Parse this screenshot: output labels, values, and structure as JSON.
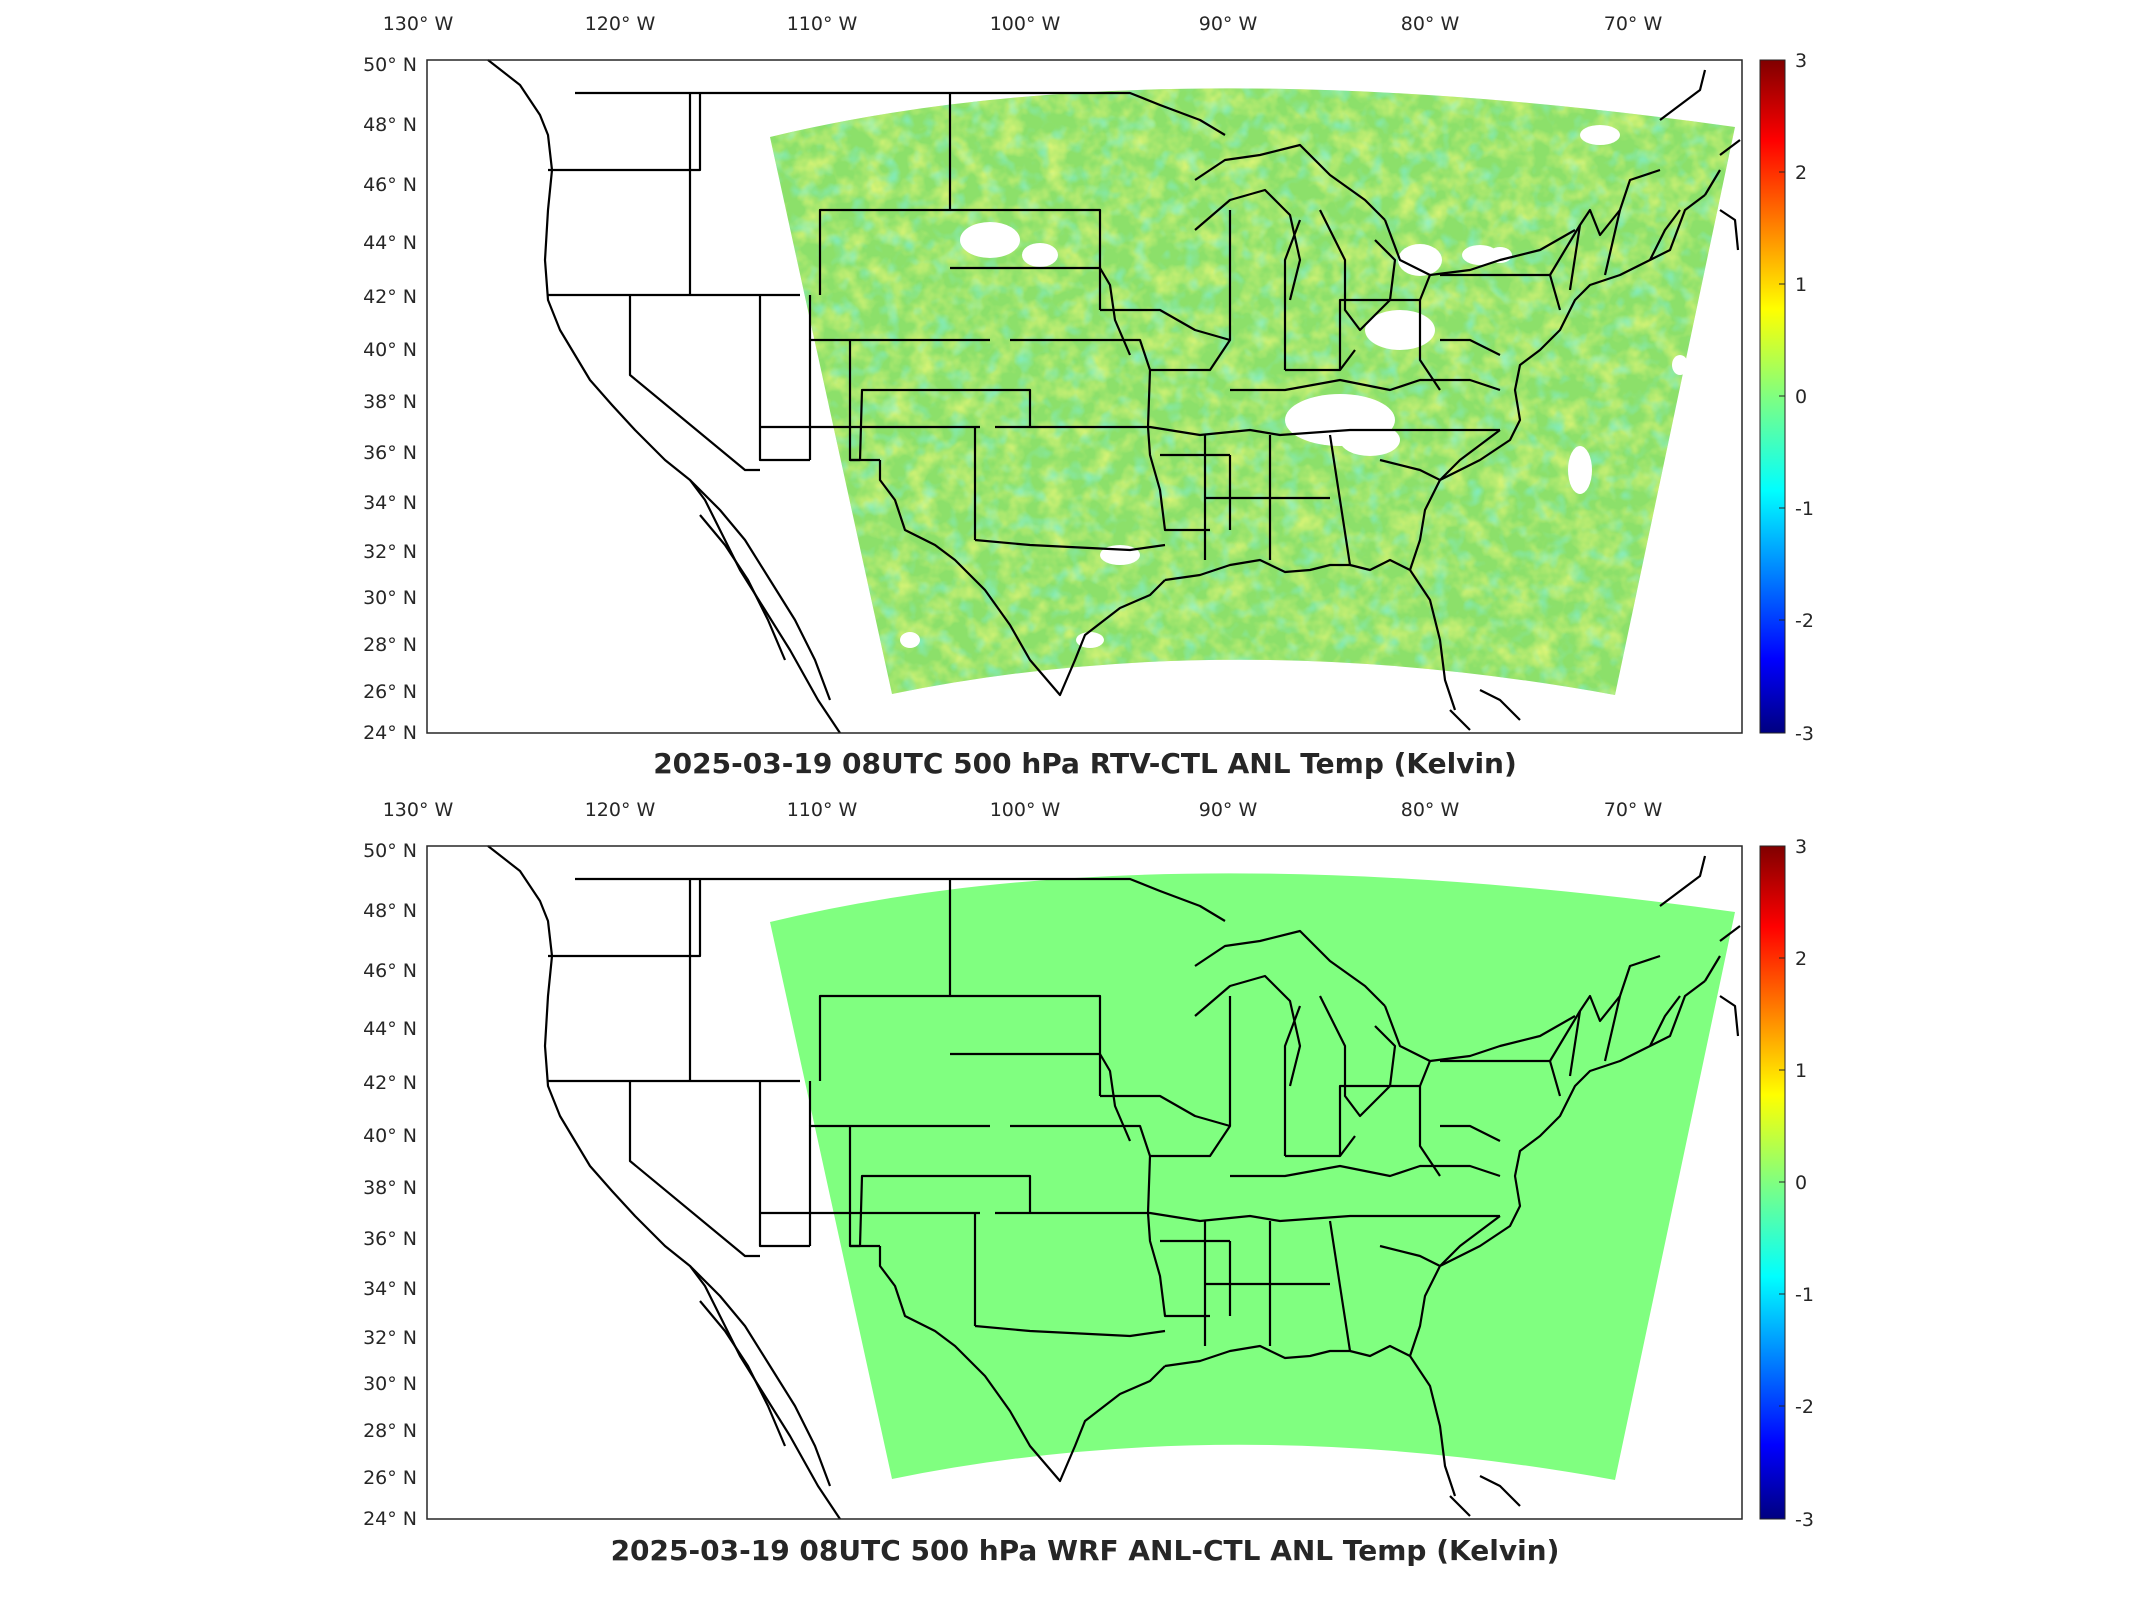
{
  "panels": [
    {
      "title": "2025-03-19 08UTC 500 hPa RTV-CTL ANL Temp (Kelvin)",
      "field": "noisy",
      "base_color": "#8ce06a"
    },
    {
      "title": "2025-03-19 08UTC 500 hPa WRF ANL-CTL ANL Temp (Kelvin)",
      "field": "uniform",
      "base_color": "#80ff80"
    }
  ],
  "axes": {
    "lon_ticks": [
      "130° W",
      "120° W",
      "110° W",
      "100° W",
      "90° W",
      "80° W",
      "70° W"
    ],
    "lat_ticks": [
      "50° N",
      "48° N",
      "46° N",
      "44° N",
      "42° N",
      "40° N",
      "38° N",
      "36° N",
      "34° N",
      "32° N",
      "30° N",
      "28° N",
      "26° N",
      "24° N"
    ],
    "lon_range": [
      -130,
      -65
    ],
    "lat_range": [
      24,
      50
    ]
  },
  "colorbar": {
    "ticks": [
      "3",
      "2",
      "1",
      "0",
      "-1",
      "-2",
      "-3"
    ],
    "range": [
      -3,
      3
    ],
    "colormap": "jet"
  }
}
